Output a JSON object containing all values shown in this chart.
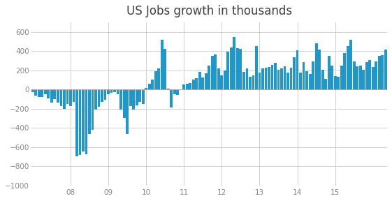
{
  "title": "US Jobs growth in thousands",
  "bar_color": "#2196C9",
  "background_color": "#FFFFFF",
  "grid_color": "#D0D0D0",
  "ylim": [
    -1000,
    700
  ],
  "yticks": [
    -1000,
    -800,
    -600,
    -400,
    -200,
    0,
    200,
    400,
    600
  ],
  "x_labels": [
    "08",
    "09",
    "10",
    "11",
    "12",
    "13",
    "14",
    "15"
  ],
  "values": [
    -26,
    -67,
    -76,
    -80,
    -47,
    -92,
    -140,
    -100,
    -140,
    -175,
    -205,
    -150,
    -175,
    -130,
    -700,
    -680,
    -648,
    -675,
    -466,
    -420,
    -212,
    -182,
    -130,
    -106,
    -48,
    -35,
    -26,
    -48,
    -210,
    -296,
    -467,
    -175,
    -210,
    -168,
    -128,
    -152,
    14,
    56,
    102,
    189,
    218,
    516,
    427,
    10,
    -190,
    -50,
    -60,
    -8,
    52,
    58,
    65,
    100,
    118,
    183,
    126,
    168,
    246,
    354,
    368,
    222,
    148,
    198,
    391,
    441,
    545,
    428,
    424,
    182,
    218,
    133,
    148,
    450,
    174,
    220,
    225,
    236,
    258,
    278,
    202,
    220,
    239,
    174,
    224,
    334,
    408,
    176,
    284,
    188,
    162,
    289,
    483,
    416,
    202,
    114,
    348,
    247,
    138,
    136,
    250,
    380,
    456,
    519,
    296,
    240,
    246,
    203,
    286,
    309,
    232,
    291,
    354,
    355,
    415
  ]
}
